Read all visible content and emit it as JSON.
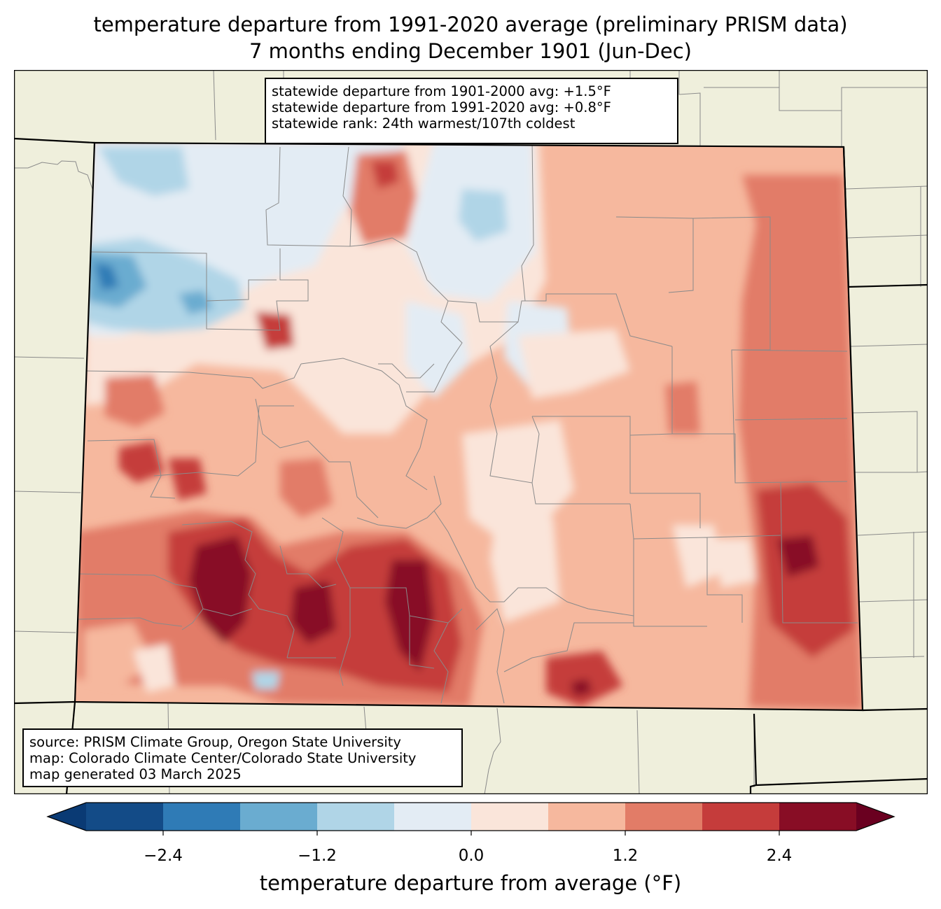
{
  "title": {
    "line1": "temperature departure from 1991-2020 average (preliminary PRISM data)",
    "line2": "7 months ending December 1901 (Jun-Dec)"
  },
  "stats": {
    "line1": "statewide departure from 1901-2000 avg: +1.5°F",
    "line2": "statewide departure from 1991-2020 avg: +0.8°F",
    "line3": "statewide rank: 24th warmest/107th coldest"
  },
  "source": {
    "line1": "source: PRISM Climate Group, Oregon State University",
    "line2": "map: Colorado Climate Center/Colorado State University",
    "line3": "map generated 03 March 2025"
  },
  "colorbar": {
    "label": "temperature departure from average (°F)",
    "ticks": [
      "−2.4",
      "−1.2",
      "0.0",
      "1.2",
      "2.4"
    ],
    "bounds": [
      -3.0,
      -2.4,
      -1.8,
      -1.2,
      -0.6,
      0.0,
      0.6,
      1.2,
      1.8,
      2.4,
      3.0
    ],
    "colors": [
      "#0a3a74",
      "#134b87",
      "#2f7bb6",
      "#6aacd0",
      "#b0d5e7",
      "#e3ecf4",
      "#fae5da",
      "#f6b89e",
      "#e27c67",
      "#c53c3b",
      "#880d25",
      "#6a0020"
    ]
  },
  "colors": {
    "land": "#efefdc",
    "county_line": "#8a8a8a",
    "state_line": "#000000"
  }
}
